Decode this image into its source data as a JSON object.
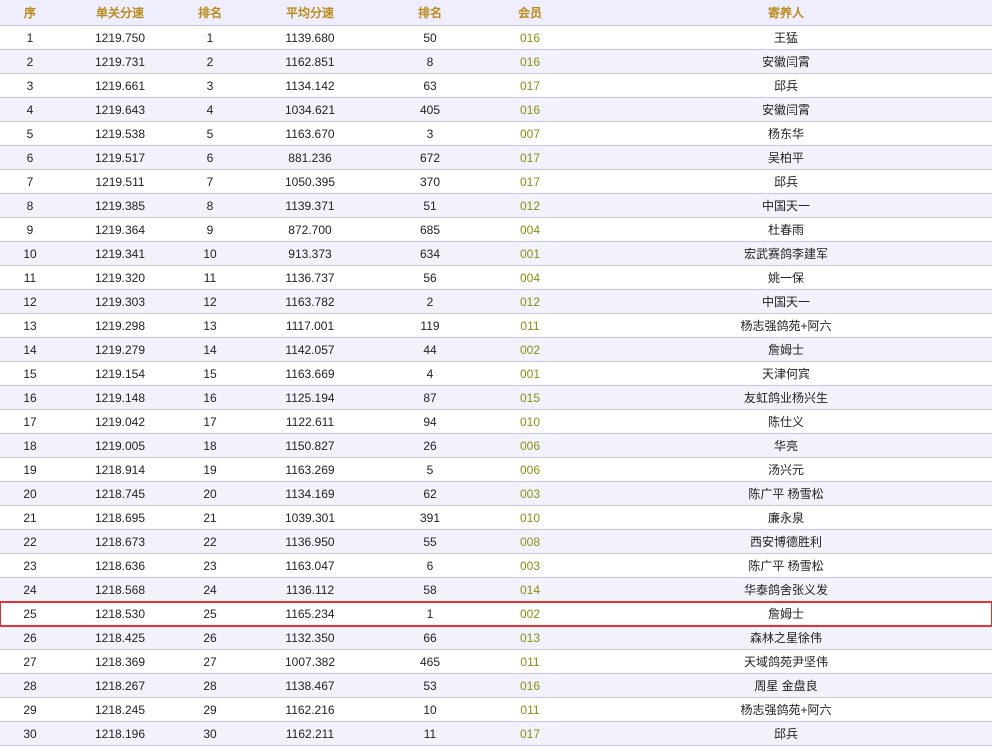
{
  "header": {
    "seq": "序",
    "single_speed": "单关分速",
    "rank1": "排名",
    "avg_speed": "平均分速",
    "rank2": "排名",
    "member": "会员",
    "owner": "寄养人"
  },
  "col_widths": [
    "60px",
    "120px",
    "60px",
    "140px",
    "100px",
    "100px",
    "auto"
  ],
  "highlight_row_index": 24,
  "rows": [
    {
      "seq": "1",
      "single": "1219.750",
      "r1": "1",
      "avg": "1139.680",
      "r2": "50",
      "mem": "016",
      "owner": "王猛"
    },
    {
      "seq": "2",
      "single": "1219.731",
      "r1": "2",
      "avg": "1162.851",
      "r2": "8",
      "mem": "016",
      "owner": "安徽闫霄"
    },
    {
      "seq": "3",
      "single": "1219.661",
      "r1": "3",
      "avg": "1134.142",
      "r2": "63",
      "mem": "017",
      "owner": "邱兵"
    },
    {
      "seq": "4",
      "single": "1219.643",
      "r1": "4",
      "avg": "1034.621",
      "r2": "405",
      "mem": "016",
      "owner": "安徽闫霄"
    },
    {
      "seq": "5",
      "single": "1219.538",
      "r1": "5",
      "avg": "1163.670",
      "r2": "3",
      "mem": "007",
      "owner": "杨东华"
    },
    {
      "seq": "6",
      "single": "1219.517",
      "r1": "6",
      "avg": "881.236",
      "r2": "672",
      "mem": "017",
      "owner": "吴柏平"
    },
    {
      "seq": "7",
      "single": "1219.511",
      "r1": "7",
      "avg": "1050.395",
      "r2": "370",
      "mem": "017",
      "owner": "邱兵"
    },
    {
      "seq": "8",
      "single": "1219.385",
      "r1": "8",
      "avg": "1139.371",
      "r2": "51",
      "mem": "012",
      "owner": "中国天一"
    },
    {
      "seq": "9",
      "single": "1219.364",
      "r1": "9",
      "avg": "872.700",
      "r2": "685",
      "mem": "004",
      "owner": "杜春雨"
    },
    {
      "seq": "10",
      "single": "1219.341",
      "r1": "10",
      "avg": "913.373",
      "r2": "634",
      "mem": "001",
      "owner": "宏武赛鸽李建军"
    },
    {
      "seq": "11",
      "single": "1219.320",
      "r1": "11",
      "avg": "1136.737",
      "r2": "56",
      "mem": "004",
      "owner": "姚一保"
    },
    {
      "seq": "12",
      "single": "1219.303",
      "r1": "12",
      "avg": "1163.782",
      "r2": "2",
      "mem": "012",
      "owner": "中国天一"
    },
    {
      "seq": "13",
      "single": "1219.298",
      "r1": "13",
      "avg": "1117.001",
      "r2": "119",
      "mem": "011",
      "owner": "杨志强鸽苑+阿六"
    },
    {
      "seq": "14",
      "single": "1219.279",
      "r1": "14",
      "avg": "1142.057",
      "r2": "44",
      "mem": "002",
      "owner": "詹姆士"
    },
    {
      "seq": "15",
      "single": "1219.154",
      "r1": "15",
      "avg": "1163.669",
      "r2": "4",
      "mem": "001",
      "owner": "天津何宾"
    },
    {
      "seq": "16",
      "single": "1219.148",
      "r1": "16",
      "avg": "1125.194",
      "r2": "87",
      "mem": "015",
      "owner": "友虹鸽业杨兴生"
    },
    {
      "seq": "17",
      "single": "1219.042",
      "r1": "17",
      "avg": "1122.611",
      "r2": "94",
      "mem": "010",
      "owner": "陈仕义"
    },
    {
      "seq": "18",
      "single": "1219.005",
      "r1": "18",
      "avg": "1150.827",
      "r2": "26",
      "mem": "006",
      "owner": "华亮"
    },
    {
      "seq": "19",
      "single": "1218.914",
      "r1": "19",
      "avg": "1163.269",
      "r2": "5",
      "mem": "006",
      "owner": "汤兴元"
    },
    {
      "seq": "20",
      "single": "1218.745",
      "r1": "20",
      "avg": "1134.169",
      "r2": "62",
      "mem": "003",
      "owner": "陈广平 杨雪松"
    },
    {
      "seq": "21",
      "single": "1218.695",
      "r1": "21",
      "avg": "1039.301",
      "r2": "391",
      "mem": "010",
      "owner": "廉永泉"
    },
    {
      "seq": "22",
      "single": "1218.673",
      "r1": "22",
      "avg": "1136.950",
      "r2": "55",
      "mem": "008",
      "owner": "西安博德胜利"
    },
    {
      "seq": "23",
      "single": "1218.636",
      "r1": "23",
      "avg": "1163.047",
      "r2": "6",
      "mem": "003",
      "owner": "陈广平 杨雪松"
    },
    {
      "seq": "24",
      "single": "1218.568",
      "r1": "24",
      "avg": "1136.112",
      "r2": "58",
      "mem": "014",
      "owner": "华泰鸽舍张义发"
    },
    {
      "seq": "25",
      "single": "1218.530",
      "r1": "25",
      "avg": "1165.234",
      "r2": "1",
      "mem": "002",
      "owner": "詹姆士"
    },
    {
      "seq": "26",
      "single": "1218.425",
      "r1": "26",
      "avg": "1132.350",
      "r2": "66",
      "mem": "013",
      "owner": "森林之星徐伟"
    },
    {
      "seq": "27",
      "single": "1218.369",
      "r1": "27",
      "avg": "1007.382",
      "r2": "465",
      "mem": "011",
      "owner": "天域鸽苑尹坚伟"
    },
    {
      "seq": "28",
      "single": "1218.267",
      "r1": "28",
      "avg": "1138.467",
      "r2": "53",
      "mem": "016",
      "owner": "周星 金盘良"
    },
    {
      "seq": "29",
      "single": "1218.245",
      "r1": "29",
      "avg": "1162.216",
      "r2": "10",
      "mem": "011",
      "owner": "杨志强鸽苑+阿六"
    },
    {
      "seq": "30",
      "single": "1218.196",
      "r1": "30",
      "avg": "1162.211",
      "r2": "11",
      "mem": "017",
      "owner": "邱兵"
    }
  ]
}
